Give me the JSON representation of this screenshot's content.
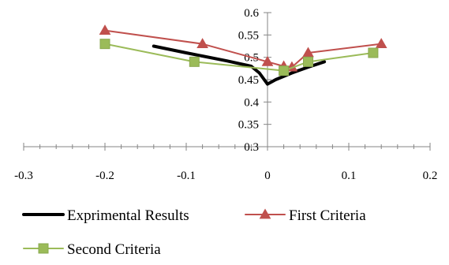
{
  "chart_data": {
    "type": "line",
    "title": "",
    "xlabel": "",
    "ylabel": "",
    "xlim": [
      -0.3,
      0.2
    ],
    "ylim": [
      0.3,
      0.6
    ],
    "x_ticks": [
      -0.3,
      -0.2,
      -0.1,
      0,
      0.1,
      0.2
    ],
    "y_ticks": [
      0.3,
      0.35,
      0.4,
      0.45,
      0.5,
      0.55,
      0.6
    ],
    "x_tick_labels": [
      "-0.3",
      "-0.2",
      "-0.1",
      "0",
      "0.1",
      "0.2"
    ],
    "y_tick_labels": [
      "0.3",
      "0.35",
      "0.4",
      "0.45",
      "0.5",
      "0.55",
      "0.6"
    ],
    "grid": false,
    "legend_position": "bottom",
    "series": [
      {
        "name": "Exprimental Results",
        "color": "#000000",
        "marker": "none",
        "x": [
          -0.14,
          -0.1,
          -0.05,
          -0.02,
          -0.01,
          0.0,
          0.01,
          0.03,
          0.05,
          0.07
        ],
        "y": [
          0.525,
          0.51,
          0.492,
          0.48,
          0.465,
          0.44,
          0.45,
          0.465,
          0.478,
          0.49
        ]
      },
      {
        "name": "First Criteria",
        "color": "#c0504d",
        "marker": "triangle",
        "x": [
          -0.2,
          -0.08,
          0.0,
          0.02,
          0.03,
          0.05,
          0.14
        ],
        "y": [
          0.56,
          0.53,
          0.49,
          0.48,
          0.478,
          0.51,
          0.53
        ]
      },
      {
        "name": "Second Criteria",
        "color": "#9bbb59",
        "marker": "square",
        "x": [
          -0.2,
          -0.09,
          0.02,
          0.05,
          0.13
        ],
        "y": [
          0.53,
          0.49,
          0.47,
          0.49,
          0.51
        ]
      }
    ]
  }
}
